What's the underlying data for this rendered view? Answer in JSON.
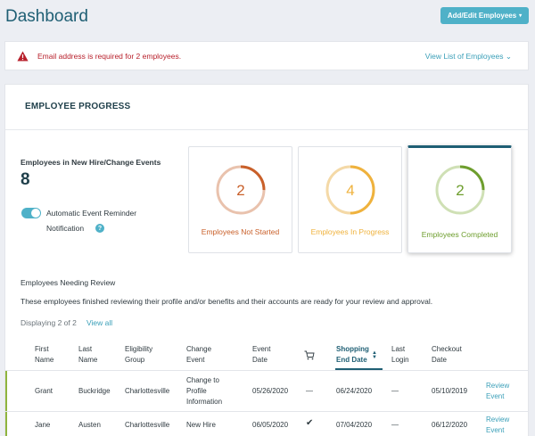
{
  "header": {
    "title": "Dashboard",
    "add_edit_label": "Add/Edit Employees",
    "caret": "▾"
  },
  "alert": {
    "icon": "warning-triangle-icon",
    "message": "Email address is required for 2 employees.",
    "view_list_label": "View List of Employees",
    "view_list_caret": "⌄"
  },
  "progress": {
    "title": "EMPLOYEE PROGRESS",
    "events_label": "Employees in New Hire/Change Events",
    "events_count": "8",
    "reminder_line1": "Automatic Event Reminder",
    "reminder_line2": "Notification",
    "reminder_enabled": true,
    "help": "?",
    "cards": [
      {
        "count": "2",
        "label": "Employees Not Started",
        "color": "#c9602a",
        "track": "#e9c2ad",
        "fraction": 0.25
      },
      {
        "count": "4",
        "label": "Employees In Progress",
        "color": "#efb23d",
        "track": "#f4d9a7",
        "fraction": 0.5
      },
      {
        "count": "2",
        "label": "Employees Completed",
        "color": "#6e9e2e",
        "track": "#cfe0b5",
        "fraction": 0.25,
        "selected": true
      }
    ]
  },
  "review": {
    "title": "Employees Needing Review",
    "description": "These employees finished reviewing their profile and/or benefits and their accounts are ready for your review and approval.",
    "displaying": "Displaying 2 of 2",
    "view_all": "View all",
    "columns": {
      "first_name": [
        "First",
        "Name"
      ],
      "last_name": [
        "Last",
        "Name"
      ],
      "eligibility": [
        "Eligibility",
        "Group"
      ],
      "change_event": [
        "Change",
        "Event"
      ],
      "event_date": [
        "Event",
        "Date"
      ],
      "cart": "cart-icon",
      "shopping_end": [
        "Shopping",
        "End Date"
      ],
      "last_login": [
        "Last",
        "Login"
      ],
      "checkout": [
        "Checkout",
        "Date"
      ]
    },
    "rows": [
      {
        "first_name": "Grant",
        "last_name": "Buckridge",
        "eligibility": "Charlottesville",
        "change_event": [
          "Change to",
          "Profile",
          "Information"
        ],
        "event_date": "05/26/2020",
        "cart": "—",
        "shopping_end": "06/24/2020",
        "last_login": "—",
        "checkout": "05/10/2019",
        "action": [
          "Review",
          "Event"
        ]
      },
      {
        "first_name": "Jane",
        "last_name": "Austen",
        "eligibility": "Charlottesville",
        "change_event": [
          "New Hire"
        ],
        "event_date": "06/05/2020",
        "cart": "✔",
        "shopping_end": "07/04/2020",
        "last_login": "—",
        "checkout": "06/12/2020",
        "action": [
          "Review",
          "Event"
        ]
      }
    ]
  }
}
